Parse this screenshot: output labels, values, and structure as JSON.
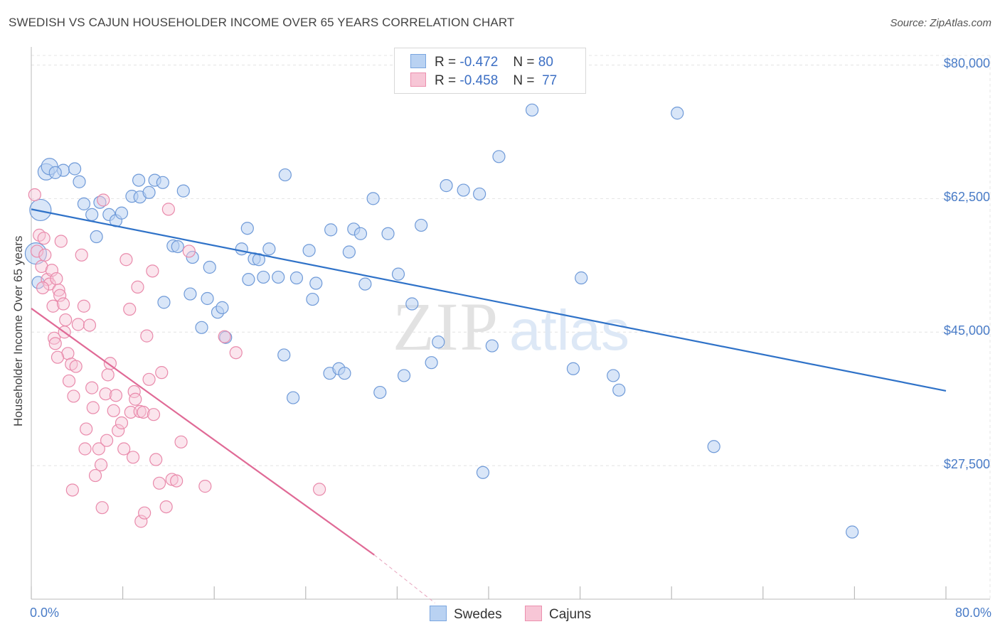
{
  "header": {
    "title": "SWEDISH VS CAJUN HOUSEHOLDER INCOME OVER 65 YEARS CORRELATION CHART",
    "source": "Source: ZipAtlas.com"
  },
  "watermark": {
    "zip": "ZIP",
    "atlas": "atlas"
  },
  "stats": [
    {
      "r_label": "R =",
      "r_value": "-0.472",
      "n_label": "N =",
      "n_value": "80",
      "color": "#7aa6e0",
      "fill": "#b9d2f2"
    },
    {
      "r_label": "R =",
      "r_value": "-0.458",
      "n_label": "N =",
      "n_value": "77",
      "color": "#ec8fae",
      "fill": "#f7c6d6"
    }
  ],
  "legend": [
    {
      "label": "Swedes",
      "color": "#7aa6e0",
      "fill": "#b9d2f2"
    },
    {
      "label": "Cajuns",
      "color": "#ec8fae",
      "fill": "#f7c6d6"
    }
  ],
  "chart_data": {
    "type": "scatter",
    "title": "SWEDISH VS CAJUN HOUSEHOLDER INCOME OVER 65 YEARS CORRELATION CHART",
    "xlabel": "",
    "ylabel": "Householder Income Over 65 years",
    "xlim": [
      0,
      80
    ],
    "ylim": [
      10000,
      82000
    ],
    "x_tick_labels": [
      "0.0%",
      "80.0%"
    ],
    "y_ticks": [
      27500,
      45000,
      62500,
      80000
    ],
    "y_tick_labels": [
      "$27,500",
      "$45,000",
      "$62,500",
      "$80,000"
    ],
    "grid": true,
    "legend_position": "bottom-center",
    "series": [
      {
        "name": "Swedes",
        "color": "#5b8fd6",
        "trend": {
          "x": [
            0,
            80
          ],
          "y": [
            61100,
            37300
          ],
          "color": "#2f72c8"
        },
        "points": [
          [
            1.3,
            66000
          ],
          [
            1.6,
            66700
          ],
          [
            2.8,
            66200
          ],
          [
            3.8,
            66400
          ],
          [
            0.8,
            61000
          ],
          [
            4.2,
            64700
          ],
          [
            4.6,
            61800
          ],
          [
            5.3,
            60400
          ],
          [
            5.7,
            57500
          ],
          [
            6.0,
            62000
          ],
          [
            6.8,
            60400
          ],
          [
            7.4,
            59600
          ],
          [
            7.9,
            60600
          ],
          [
            8.8,
            62800
          ],
          [
            9.5,
            62700
          ],
          [
            9.4,
            64900
          ],
          [
            10.3,
            63300
          ],
          [
            10.8,
            64900
          ],
          [
            11.5,
            64600
          ],
          [
            11.6,
            48900
          ],
          [
            12.4,
            56300
          ],
          [
            12.8,
            56200
          ],
          [
            13.3,
            63500
          ],
          [
            13.9,
            50000
          ],
          [
            14.1,
            54800
          ],
          [
            14.9,
            45600
          ],
          [
            15.4,
            49400
          ],
          [
            15.6,
            53500
          ],
          [
            16.3,
            47600
          ],
          [
            16.7,
            48200
          ],
          [
            17.0,
            44300
          ],
          [
            18.4,
            55900
          ],
          [
            18.9,
            58600
          ],
          [
            19.0,
            51900
          ],
          [
            19.5,
            54600
          ],
          [
            19.9,
            54500
          ],
          [
            20.3,
            52200
          ],
          [
            20.8,
            55900
          ],
          [
            21.6,
            52200
          ],
          [
            22.1,
            42000
          ],
          [
            22.2,
            65600
          ],
          [
            22.9,
            36400
          ],
          [
            23.2,
            52100
          ],
          [
            24.3,
            55700
          ],
          [
            24.6,
            49300
          ],
          [
            24.9,
            51400
          ],
          [
            26.1,
            39600
          ],
          [
            26.2,
            58400
          ],
          [
            26.9,
            40200
          ],
          [
            27.4,
            39600
          ],
          [
            27.8,
            55500
          ],
          [
            28.2,
            58500
          ],
          [
            28.8,
            57900
          ],
          [
            29.2,
            51300
          ],
          [
            29.9,
            62500
          ],
          [
            30.5,
            37100
          ],
          [
            31.2,
            57900
          ],
          [
            32.1,
            52600
          ],
          [
            32.6,
            39300
          ],
          [
            33.3,
            48700
          ],
          [
            34.1,
            59000
          ],
          [
            35.0,
            41000
          ],
          [
            35.6,
            43700
          ],
          [
            36.3,
            64200
          ],
          [
            37.8,
            63600
          ],
          [
            39.2,
            63100
          ],
          [
            40.3,
            43200
          ],
          [
            40.9,
            68000
          ],
          [
            39.5,
            26600
          ],
          [
            43.8,
            74100
          ],
          [
            47.4,
            40200
          ],
          [
            48.1,
            52100
          ],
          [
            50.9,
            39300
          ],
          [
            51.4,
            37400
          ],
          [
            56.5,
            73700
          ],
          [
            59.7,
            30000
          ],
          [
            71.8,
            18800
          ],
          [
            0.4,
            55300
          ],
          [
            0.6,
            51500
          ],
          [
            2.1,
            65900
          ]
        ]
      },
      {
        "name": "Cajuns",
        "color": "#e97fa4",
        "trend": {
          "x": [
            0,
            30
          ],
          "y": [
            48100,
            15800
          ],
          "dash_to": [
            35.3,
            9500
          ],
          "color": "#e06a96"
        },
        "points": [
          [
            0.3,
            63000
          ],
          [
            0.5,
            55600
          ],
          [
            0.7,
            57700
          ],
          [
            0.9,
            53600
          ],
          [
            1.1,
            57300
          ],
          [
            1.2,
            55100
          ],
          [
            1.4,
            51900
          ],
          [
            1.6,
            51300
          ],
          [
            1.8,
            53100
          ],
          [
            1.9,
            48400
          ],
          [
            2.0,
            44200
          ],
          [
            2.1,
            43500
          ],
          [
            2.2,
            52000
          ],
          [
            2.4,
            50500
          ],
          [
            2.5,
            49800
          ],
          [
            2.6,
            56900
          ],
          [
            2.8,
            48700
          ],
          [
            2.9,
            45000
          ],
          [
            3.0,
            46600
          ],
          [
            3.2,
            42200
          ],
          [
            3.3,
            38600
          ],
          [
            3.5,
            40800
          ],
          [
            3.7,
            36600
          ],
          [
            3.9,
            40500
          ],
          [
            4.1,
            46000
          ],
          [
            4.4,
            55100
          ],
          [
            4.6,
            48400
          ],
          [
            4.8,
            32300
          ],
          [
            5.1,
            45900
          ],
          [
            5.3,
            37700
          ],
          [
            5.4,
            35100
          ],
          [
            5.6,
            26200
          ],
          [
            5.9,
            29700
          ],
          [
            6.1,
            27600
          ],
          [
            6.3,
            62300
          ],
          [
            6.5,
            36900
          ],
          [
            6.6,
            30800
          ],
          [
            6.7,
            39400
          ],
          [
            6.9,
            40900
          ],
          [
            7.2,
            34700
          ],
          [
            7.4,
            36700
          ],
          [
            7.6,
            32100
          ],
          [
            7.9,
            33100
          ],
          [
            8.1,
            29700
          ],
          [
            8.3,
            54500
          ],
          [
            8.6,
            48000
          ],
          [
            8.7,
            34500
          ],
          [
            8.9,
            28600
          ],
          [
            9.0,
            37200
          ],
          [
            9.1,
            36200
          ],
          [
            9.3,
            50900
          ],
          [
            9.5,
            34600
          ],
          [
            9.6,
            20200
          ],
          [
            9.8,
            34500
          ],
          [
            10.1,
            44500
          ],
          [
            10.3,
            38800
          ],
          [
            10.6,
            53000
          ],
          [
            10.7,
            34200
          ],
          [
            10.9,
            28300
          ],
          [
            11.2,
            25200
          ],
          [
            11.4,
            39700
          ],
          [
            11.8,
            22100
          ],
          [
            12.0,
            61100
          ],
          [
            12.3,
            25700
          ],
          [
            12.7,
            25500
          ],
          [
            13.1,
            30600
          ],
          [
            13.8,
            55600
          ],
          [
            15.2,
            24800
          ],
          [
            16.9,
            44400
          ],
          [
            17.9,
            42300
          ],
          [
            25.2,
            24400
          ],
          [
            4.7,
            29700
          ],
          [
            6.2,
            22000
          ],
          [
            9.9,
            21300
          ],
          [
            3.6,
            24300
          ],
          [
            2.3,
            41700
          ],
          [
            1.0,
            50800
          ]
        ]
      }
    ]
  }
}
